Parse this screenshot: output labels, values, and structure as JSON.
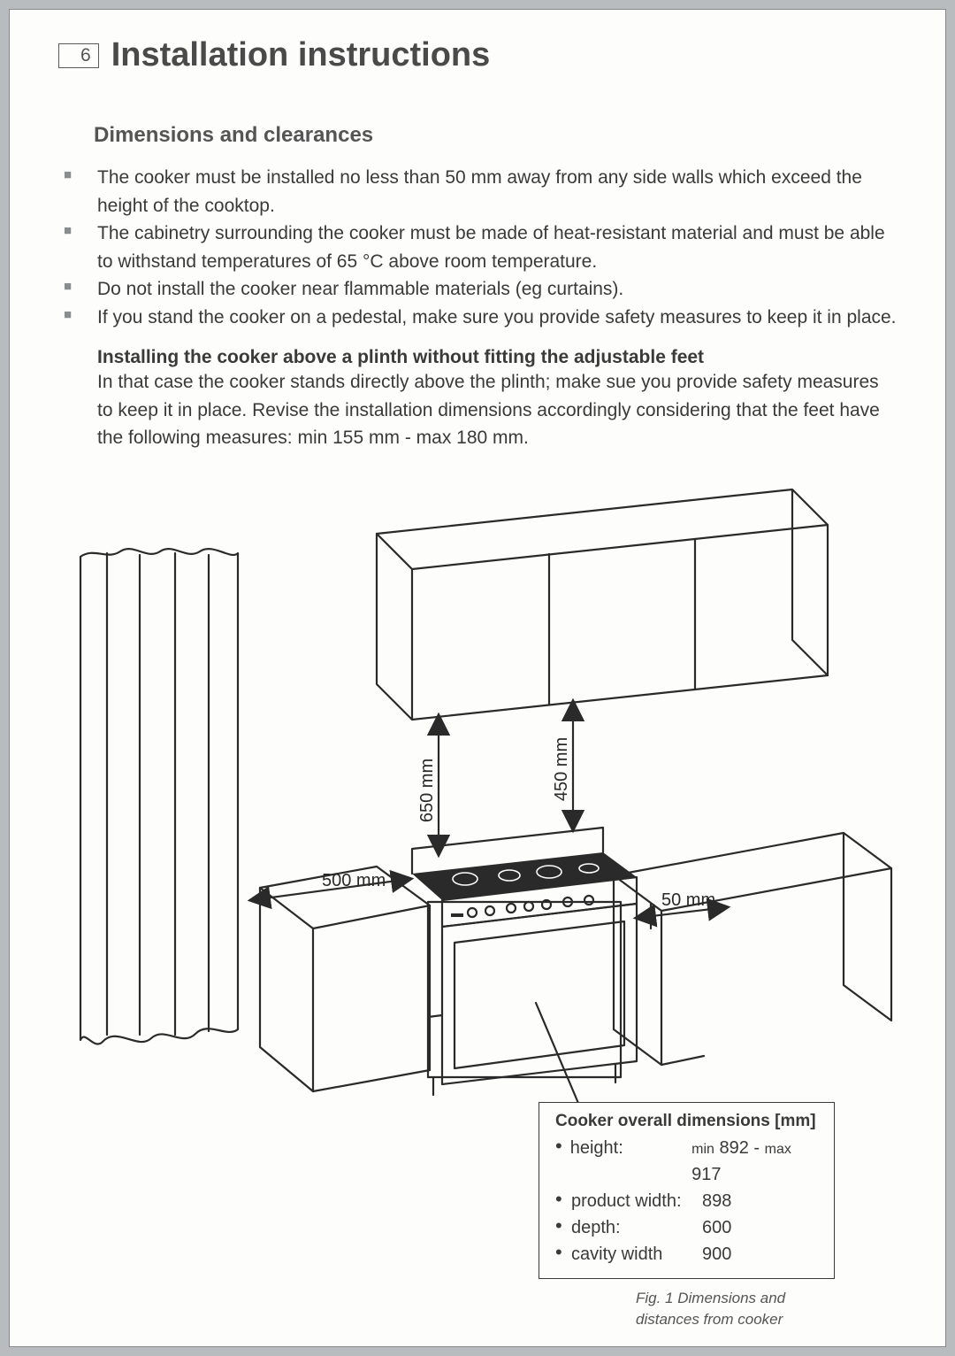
{
  "page_number": "6",
  "title": "Installation instructions",
  "section_title": "Dimensions and clearances",
  "bullets": [
    "The cooker must be installed no less than 50 mm away from any side walls which exceed the height of the cooktop.",
    "The cabinetry surrounding the cooker must be made of heat-resistant material and must be able to withstand temperatures of 65 °C above room temperature.",
    "Do not install the cooker near flammable materials (eg curtains).",
    "If you stand the cooker on a pedestal, make sure you provide safety measures to keep it in place."
  ],
  "sub_heading": "Installing the cooker above a plinth without fitting the adjustable feet",
  "sub_body": "In that case the cooker stands directly above the plinth; make sue you provide safety measures to keep it in place. Revise the installation dimensions accordingly considering that the feet have the following measures: min 155 mm - max 180 mm.",
  "diagram": {
    "labels": {
      "v_left": "650 mm",
      "v_right": "450 mm",
      "h_left": "500 mm",
      "h_right": "50 mm"
    },
    "stroke": "#2a2a2a",
    "stroke_width": 2.2,
    "label_fontsize": 20
  },
  "dim_box": {
    "title": "Cooker overall dimensions [mm]",
    "rows": [
      {
        "label": "height:",
        "value_html": "<span class='mm'>min</span> 892 - <span class='mm'>max</span> 917"
      },
      {
        "label": "product width:",
        "value_html": "898"
      },
      {
        "label": "depth:",
        "value_html": "600"
      },
      {
        "label": "cavity width",
        "value_html": "900"
      }
    ]
  },
  "fig_caption": "Fig. 1 Dimensions and distances from cooker"
}
